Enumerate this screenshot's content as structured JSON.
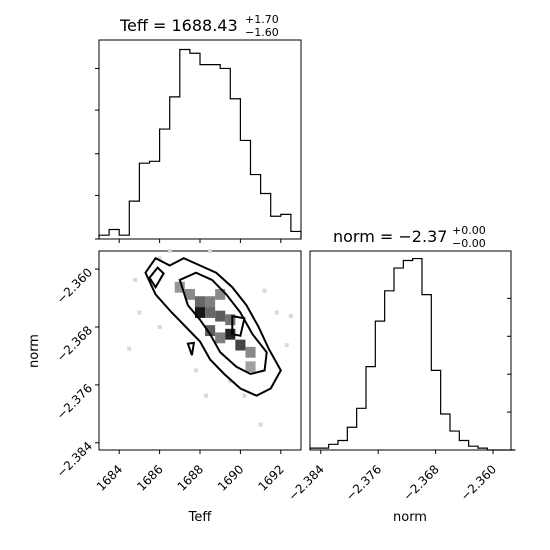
{
  "chart_data": [
    {
      "type": "histogram",
      "panel": "Teff-marginal",
      "title": {
        "main": "Teff = 1688.43",
        "sup": "+1.70",
        "sub": "−1.60"
      },
      "x": [
        1683.0,
        1683.5,
        1684.0,
        1684.5,
        1685.0,
        1685.5,
        1686.0,
        1686.5,
        1687.0,
        1687.5,
        1688.0,
        1688.5,
        1689.0,
        1689.5,
        1690.0,
        1690.5,
        1691.0,
        1691.5,
        1692.0,
        1692.5
      ],
      "values": [
        0.02,
        0.05,
        0.02,
        0.2,
        0.4,
        0.41,
        0.58,
        0.75,
        1.0,
        0.98,
        0.92,
        0.92,
        0.9,
        0.74,
        0.52,
        0.34,
        0.24,
        0.12,
        0.13,
        0.04
      ],
      "xlim": [
        1683.0,
        1693.0
      ],
      "ylim": [
        0,
        1.05
      ]
    },
    {
      "type": "heatmap",
      "panel": "Teff-norm-2D",
      "xlabel": "Teff",
      "ylabel": "norm",
      "xlim": [
        1683.0,
        1693.0
      ],
      "ylim": [
        -2.385,
        -2.3575
      ],
      "xticks": [
        "1684",
        "1686",
        "1688",
        "1690",
        "1692"
      ],
      "yticks": [
        "−2.360",
        "−2.368",
        "−2.376",
        "−2.384"
      ],
      "cells": [
        {
          "x": 1688.0,
          "y": -2.3645,
          "v": 0.55
        },
        {
          "x": 1688.5,
          "y": -2.3645,
          "v": 0.45
        },
        {
          "x": 1689.0,
          "y": -2.3635,
          "v": 0.4
        },
        {
          "x": 1688.0,
          "y": -2.366,
          "v": 0.9
        },
        {
          "x": 1688.5,
          "y": -2.366,
          "v": 0.55
        },
        {
          "x": 1689.0,
          "y": -2.3665,
          "v": 0.6
        },
        {
          "x": 1689.5,
          "y": -2.367,
          "v": 0.5
        },
        {
          "x": 1688.5,
          "y": -2.3685,
          "v": 0.6
        },
        {
          "x": 1689.0,
          "y": -2.3695,
          "v": 0.45
        },
        {
          "x": 1689.5,
          "y": -2.369,
          "v": 0.85
        },
        {
          "x": 1690.0,
          "y": -2.3705,
          "v": 0.7
        },
        {
          "x": 1690.5,
          "y": -2.3715,
          "v": 0.4
        },
        {
          "x": 1687.0,
          "y": -2.3625,
          "v": 0.35
        },
        {
          "x": 1687.5,
          "y": -2.3635,
          "v": 0.4
        },
        {
          "x": 1690.5,
          "y": -2.3735,
          "v": 0.3
        }
      ],
      "contours": [
        [
          [
            1685.3,
            -2.3605
          ],
          [
            1685.8,
            -2.3585
          ],
          [
            1686.5,
            -2.3595
          ],
          [
            1687.2,
            -2.3585
          ],
          [
            1688.0,
            -2.3595
          ],
          [
            1688.8,
            -2.3605
          ],
          [
            1689.6,
            -2.3625
          ],
          [
            1690.3,
            -2.365
          ],
          [
            1690.9,
            -2.368
          ],
          [
            1691.4,
            -2.371
          ],
          [
            1692.0,
            -2.374
          ],
          [
            1691.5,
            -2.3765
          ],
          [
            1690.8,
            -2.3775
          ],
          [
            1690.0,
            -2.3765
          ],
          [
            1689.2,
            -2.3745
          ],
          [
            1688.5,
            -2.3725
          ],
          [
            1688.0,
            -2.37
          ],
          [
            1687.3,
            -2.368
          ],
          [
            1686.6,
            -2.366
          ],
          [
            1685.8,
            -2.3635
          ],
          [
            1685.3,
            -2.3605
          ]
        ],
        [
          [
            1687.0,
            -2.3615
          ],
          [
            1687.8,
            -2.3605
          ],
          [
            1688.6,
            -2.3615
          ],
          [
            1689.3,
            -2.3635
          ],
          [
            1690.0,
            -2.366
          ],
          [
            1690.6,
            -2.369
          ],
          [
            1691.3,
            -2.3715
          ],
          [
            1691.2,
            -2.374
          ],
          [
            1690.5,
            -2.3745
          ],
          [
            1689.8,
            -2.3735
          ],
          [
            1689.0,
            -2.3715
          ],
          [
            1688.5,
            -2.369
          ],
          [
            1688.0,
            -2.367
          ],
          [
            1687.4,
            -2.365
          ],
          [
            1687.0,
            -2.3615
          ]
        ],
        [
          [
            1685.5,
            -2.3612
          ],
          [
            1685.9,
            -2.3598
          ],
          [
            1686.2,
            -2.3606
          ],
          [
            1685.8,
            -2.3625
          ],
          [
            1685.5,
            -2.3612
          ]
        ],
        [
          [
            1689.6,
            -2.3665
          ],
          [
            1690.2,
            -2.3668
          ],
          [
            1690.0,
            -2.3692
          ],
          [
            1689.6,
            -2.369
          ],
          [
            1689.6,
            -2.3665
          ]
        ],
        [
          [
            1687.4,
            -2.3703
          ],
          [
            1687.7,
            -2.3702
          ],
          [
            1687.6,
            -2.3719
          ],
          [
            1687.4,
            -2.3703
          ]
        ]
      ],
      "scatter": [
        [
          1684.5,
          -2.371
        ],
        [
          1685.0,
          -2.366
        ],
        [
          1686.0,
          -2.3585
        ],
        [
          1686.5,
          -2.3575
        ],
        [
          1687.8,
          -2.374
        ],
        [
          1688.5,
          -2.3575
        ],
        [
          1691.2,
          -2.363
        ],
        [
          1691.8,
          -2.366
        ],
        [
          1692.5,
          -2.3665
        ],
        [
          1692.3,
          -2.3705
        ],
        [
          1690.2,
          -2.3775
        ],
        [
          1689.5,
          -2.3755
        ],
        [
          1691.0,
          -2.3815
        ],
        [
          1688.3,
          -2.3775
        ],
        [
          1684.8,
          -2.3615
        ],
        [
          1686.0,
          -2.368
        ]
      ]
    },
    {
      "type": "histogram",
      "panel": "norm-marginal",
      "title": {
        "main": "norm = −2.37",
        "sup": "+0.00",
        "sub": "−0.00"
      },
      "xlabel": "norm",
      "xlim": [
        -2.3855,
        -2.3575
      ],
      "xticks": [
        "−2.384",
        "−2.376",
        "−2.368",
        "−2.360"
      ],
      "x": [
        -2.3855,
        -2.3842,
        -2.3829,
        -2.3816,
        -2.3803,
        -2.379,
        -2.3777,
        -2.3764,
        -2.3751,
        -2.3738,
        -2.3725,
        -2.3712,
        -2.3699,
        -2.3686,
        -2.3673,
        -2.366,
        -2.3647,
        -2.3634,
        -2.3621,
        -2.3608,
        -2.3595,
        -2.3582
      ],
      "values": [
        0.01,
        0.01,
        0.03,
        0.05,
        0.12,
        0.22,
        0.44,
        0.68,
        0.84,
        0.96,
        1.0,
        1.01,
        0.82,
        0.42,
        0.19,
        0.1,
        0.05,
        0.02,
        0.01,
        0.0,
        0.0,
        0.0
      ],
      "ylim": [
        0,
        1.05
      ]
    }
  ]
}
